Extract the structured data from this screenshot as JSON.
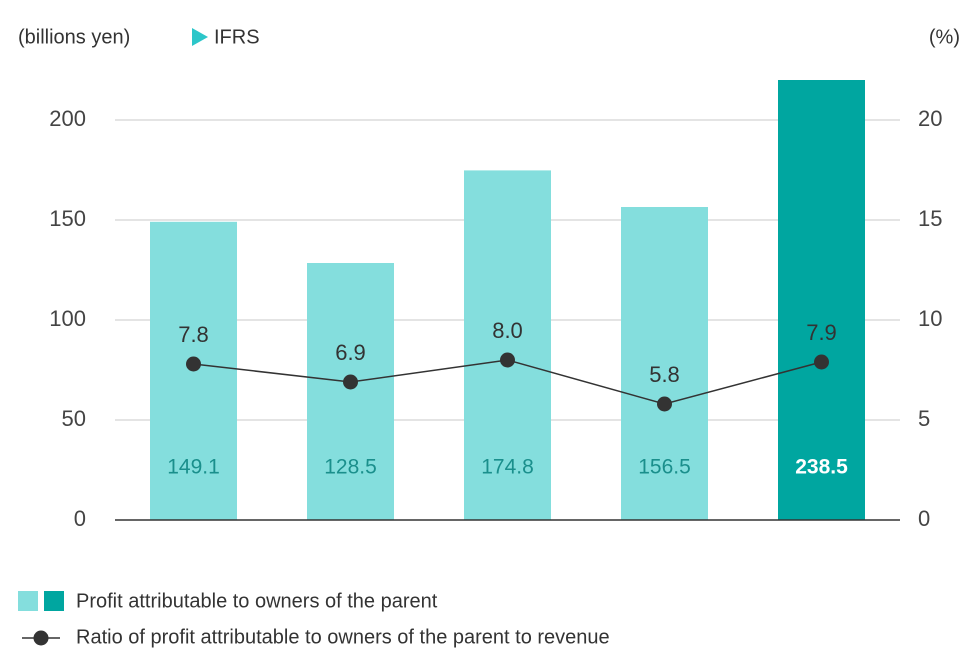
{
  "chart_data": {
    "type": "bar",
    "unit_label": "(billions yen)",
    "badge": "IFRS",
    "y2_unit_label": "(%)",
    "ylim": [
      0,
      220
    ],
    "yticks": [
      0,
      50,
      100,
      150,
      200
    ],
    "y2lim": [
      0,
      22
    ],
    "y2ticks": [
      0,
      5,
      10,
      15,
      20
    ],
    "grid": true,
    "series": [
      {
        "name": "Profit attributable to owners of the parent",
        "type": "bar",
        "colors": [
          "#84dedd",
          "#84dedd",
          "#84dedd",
          "#84dedd",
          "#00a6a0"
        ],
        "values": [
          149.1,
          128.5,
          174.8,
          156.5,
          238.5
        ]
      },
      {
        "name": "Ratio of profit attributable to owners of the parent to revenue",
        "type": "line",
        "axis": "y2",
        "color": "#333333",
        "values": [
          7.8,
          6.9,
          8.0,
          5.8,
          7.9
        ],
        "value_labels": [
          "7.8",
          "6.9",
          "8.0",
          "5.8",
          "7.9"
        ]
      }
    ]
  }
}
